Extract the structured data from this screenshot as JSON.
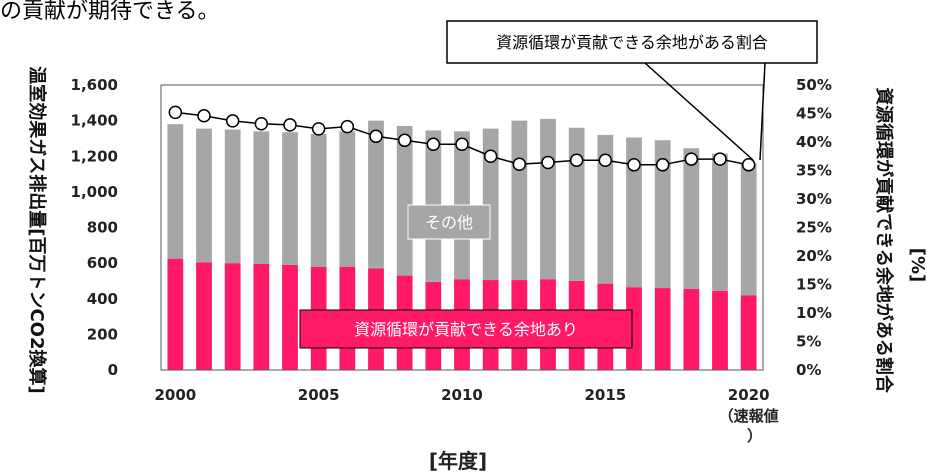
{
  "page": {
    "top_text": "の貢献が期待できる。"
  },
  "chart_data": {
    "type": "bar",
    "stacked": true,
    "title": "",
    "x": [
      2000,
      2001,
      2002,
      2003,
      2004,
      2005,
      2006,
      2007,
      2008,
      2009,
      2010,
      2011,
      2012,
      2013,
      2014,
      2015,
      2016,
      2017,
      2018,
      2019,
      2020
    ],
    "series": [
      {
        "name": "資源循環が貢献できる余地あり",
        "color": "#ff1a66",
        "values": [
          625,
          605,
          600,
          595,
          590,
          580,
          580,
          570,
          530,
          495,
          510,
          505,
          505,
          510,
          500,
          485,
          465,
          460,
          455,
          445,
          420
        ]
      },
      {
        "name": "その他",
        "color": "#a6a6a6",
        "values": [
          755,
          750,
          750,
          745,
          745,
          745,
          760,
          830,
          840,
          850,
          830,
          850,
          895,
          900,
          860,
          835,
          840,
          830,
          790,
          770,
          740
        ]
      }
    ],
    "line_series": {
      "name": "資源循環が貢献できる余地がある割合",
      "axis": "right",
      "values": [
        45.2,
        44.6,
        43.7,
        43.2,
        43.0,
        42.3,
        42.7,
        41.0,
        40.3,
        39.6,
        39.6,
        37.5,
        36.1,
        36.4,
        36.8,
        36.8,
        36.0,
        36.0,
        37.0,
        37.0,
        36.0
      ]
    },
    "xlabel": "[年度]",
    "x_tick_labels": [
      "2000",
      "2005",
      "2010",
      "2015",
      "2020"
    ],
    "x_last_note": "（速報値）",
    "ylabel_left": "温室効果ガス排出量[百万トンCO2換算]",
    "ylim_left": [
      0,
      1600
    ],
    "yticks_left": [
      "0",
      "200",
      "400",
      "600",
      "800",
      "1,000",
      "1,200",
      "1,400",
      "1,600"
    ],
    "ylabel_right": "資源循環が貢献できる余地がある割合",
    "ylabel_right_unit": "[%]",
    "ylim_right": [
      0,
      50
    ],
    "yticks_right": [
      "0%",
      "5%",
      "10%",
      "15%",
      "20%",
      "25%",
      "30%",
      "35%",
      "40%",
      "45%",
      "50%"
    ],
    "annotations": {
      "callout": "資源循環が貢献できる余地がある割合",
      "other_label": "その他",
      "contrib_label": "資源循環が貢献できる余地あり"
    },
    "colors": {
      "contrib": "#ff1a66",
      "other": "#a6a6a6",
      "other_label_bg": "#a6a6a6",
      "contrib_label_bg": "#ff1a66"
    }
  }
}
